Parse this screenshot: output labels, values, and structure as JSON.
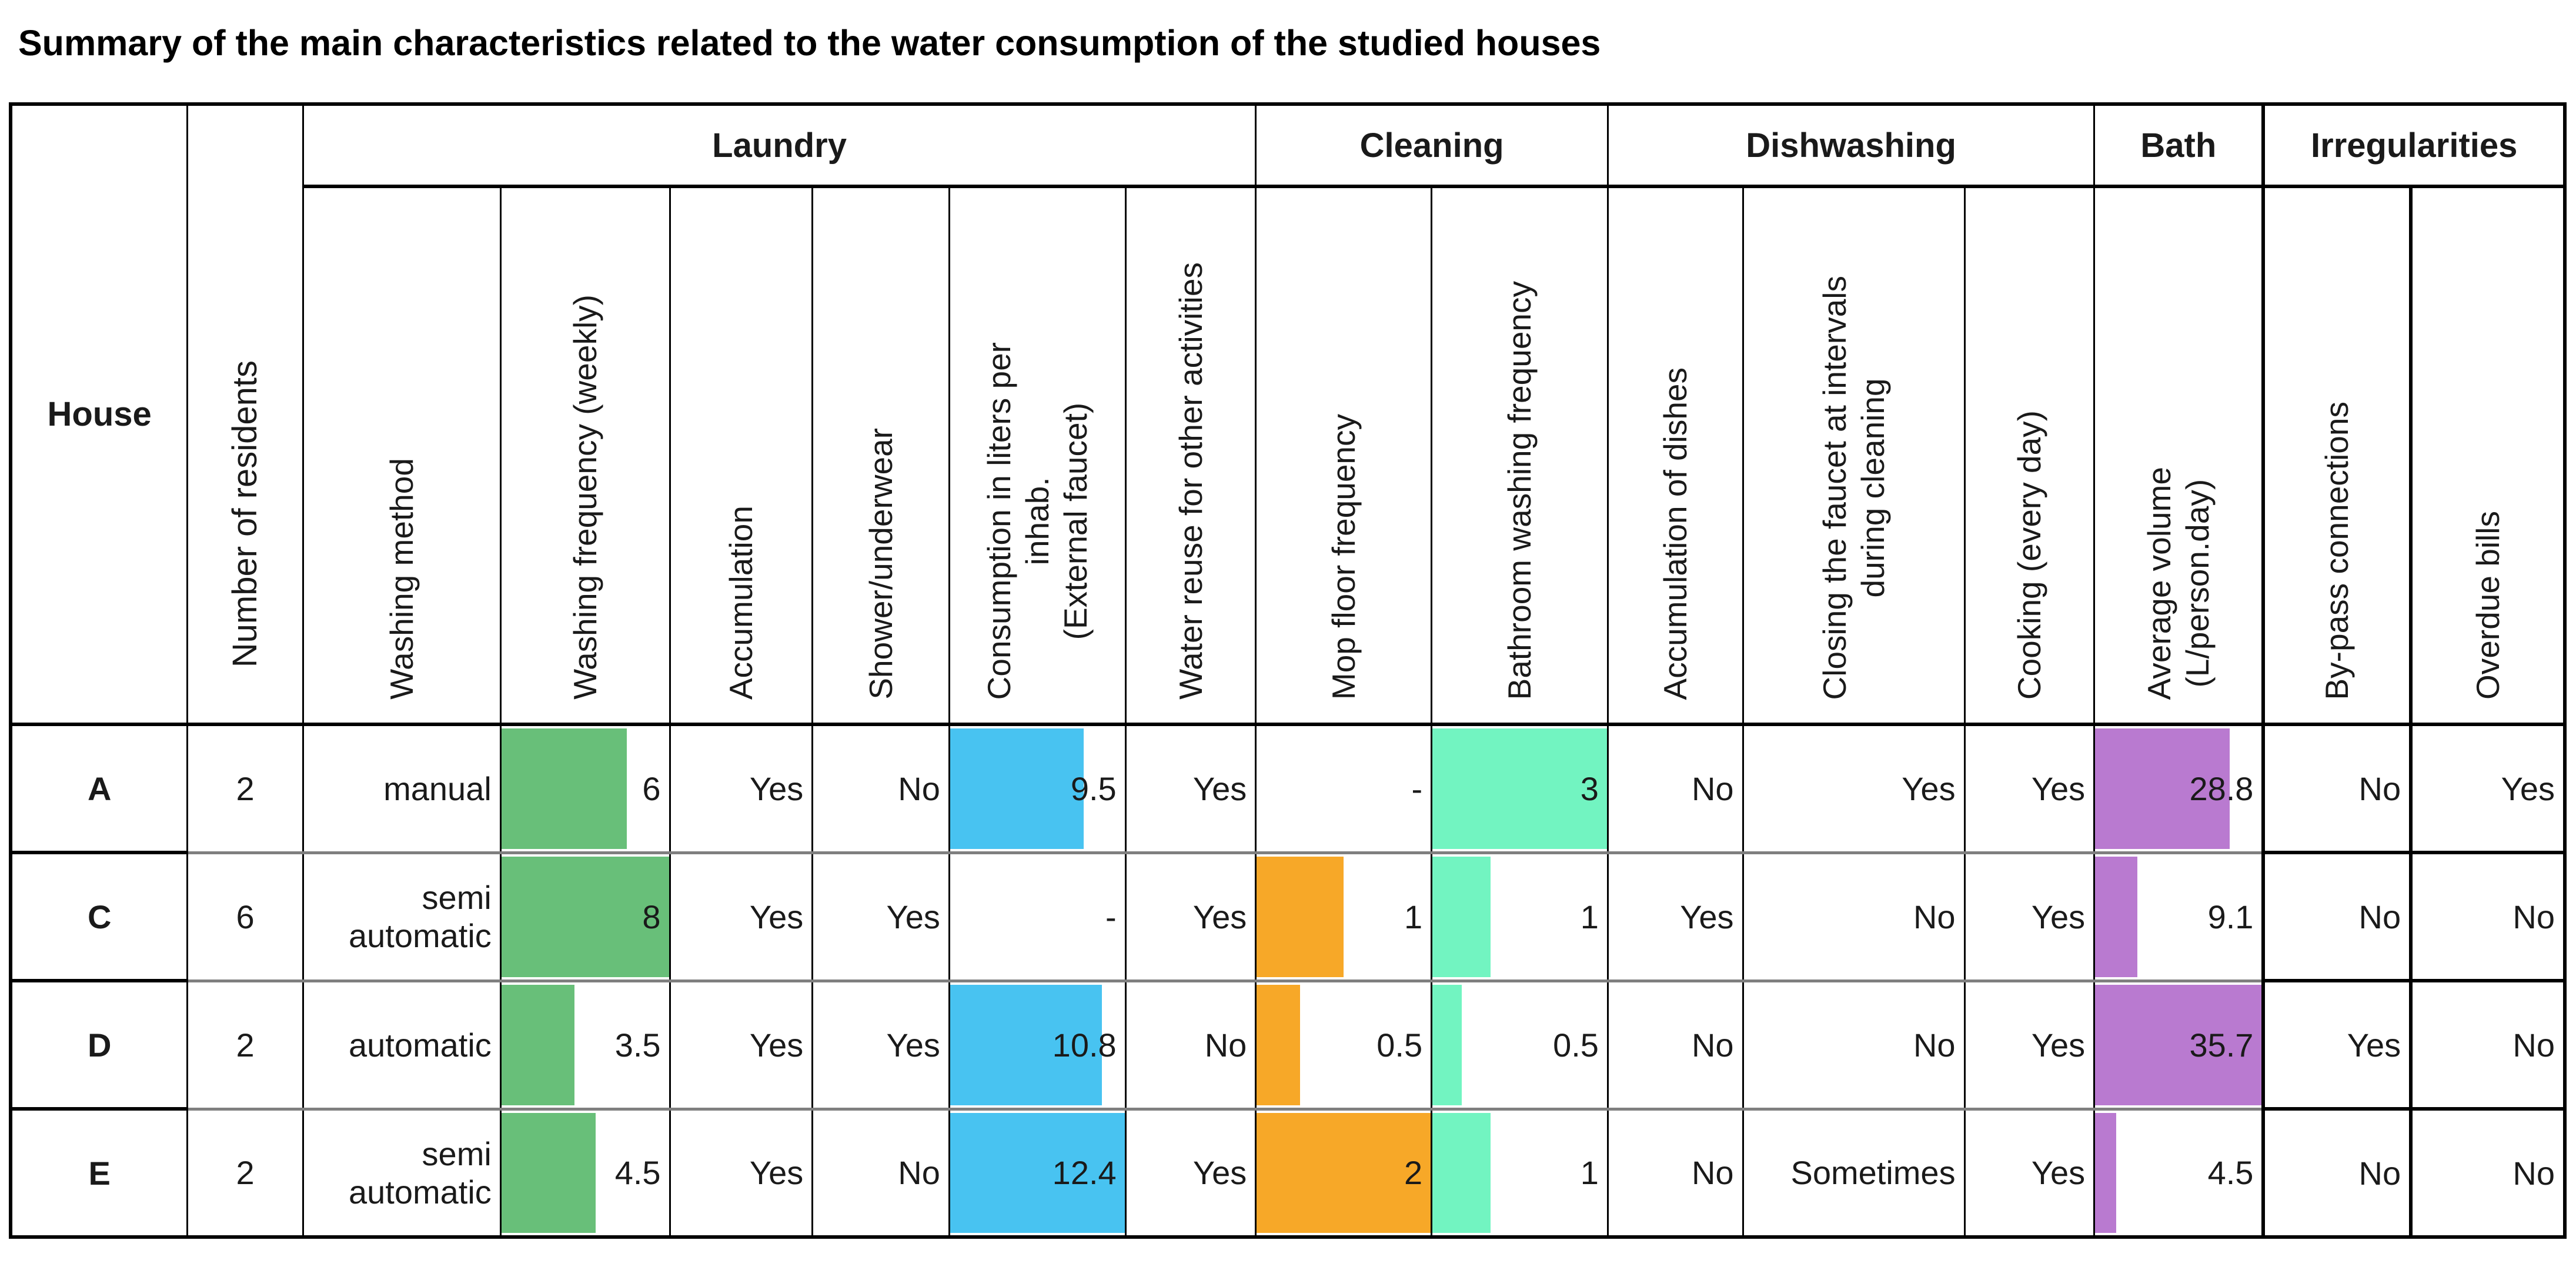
{
  "title": "Summary of the main characteristics related to the water consumption of the studied houses",
  "table": {
    "corner_headers": {
      "house": "House",
      "residents": "Number of residents"
    },
    "groups": {
      "laundry": "Laundry",
      "cleaning": "Cleaning",
      "dishwashing": "Dishwashing",
      "bath": "Bath",
      "irregularities": "Irregularities"
    },
    "columns": {
      "washing_method": "Washing method",
      "washing_freq": "Washing frequency (weekly)",
      "accumulation": "Accumulation",
      "shower_underwear": "Shower/underwear",
      "consumption": "Consumption in liters per\ninhab.\n(External faucet)",
      "water_reuse": "Water reuse for other activities",
      "mop_floor": "Mop floor frequency",
      "bathroom_washing": "Bathroom washing frequency",
      "accumulation_dishes": "Accumulation of dishes",
      "closing_faucet": "Closing the faucet at intervals\nduring cleaning",
      "cooking": "Cooking (every day)",
      "average_volume": "Average volume\n(L/person.day)",
      "bypass": "By-pass connections",
      "overdue": "Overdue bills"
    },
    "bars": {
      "washing_freq": {
        "max": 8,
        "color": "#68bf79"
      },
      "consumption": {
        "max": 12.4,
        "color": "#48c3f1"
      },
      "mop_floor": {
        "max": 2,
        "color": "#f7a828"
      },
      "bathroom_washing": {
        "max": 3,
        "color": "#72f4c1"
      },
      "average_volume": {
        "max": 35.7,
        "color": "#b97ad0"
      }
    },
    "rows": [
      {
        "house": "A",
        "residents": "2",
        "washing_method": "manual",
        "washing_freq": {
          "value": 6,
          "label": "6"
        },
        "accumulation": "Yes",
        "shower_underwear": "No",
        "consumption": {
          "value": 9.5,
          "label": "9.5"
        },
        "water_reuse": "Yes",
        "mop_floor": {
          "value": null,
          "label": "-"
        },
        "bathroom_washing": {
          "value": 3,
          "label": "3"
        },
        "accumulation_dishes": "No",
        "closing_faucet": "Yes",
        "cooking": "Yes",
        "average_volume": {
          "value": 28.8,
          "label": "28.8"
        },
        "bypass": "No",
        "overdue": "Yes"
      },
      {
        "house": "C",
        "residents": "6",
        "washing_method": "semi automatic",
        "washing_freq": {
          "value": 8,
          "label": "8"
        },
        "accumulation": "Yes",
        "shower_underwear": "Yes",
        "consumption": {
          "value": null,
          "label": "-"
        },
        "water_reuse": "Yes",
        "mop_floor": {
          "value": 1,
          "label": "1"
        },
        "bathroom_washing": {
          "value": 1,
          "label": "1"
        },
        "accumulation_dishes": "Yes",
        "closing_faucet": "No",
        "cooking": "Yes",
        "average_volume": {
          "value": 9.1,
          "label": "9.1"
        },
        "bypass": "No",
        "overdue": "No"
      },
      {
        "house": "D",
        "residents": "2",
        "washing_method": "automatic",
        "washing_freq": {
          "value": 3.5,
          "label": "3.5"
        },
        "accumulation": "Yes",
        "shower_underwear": "Yes",
        "consumption": {
          "value": 10.8,
          "label": "10.8"
        },
        "water_reuse": "No",
        "mop_floor": {
          "value": 0.5,
          "label": "0.5"
        },
        "bathroom_washing": {
          "value": 0.5,
          "label": "0.5"
        },
        "accumulation_dishes": "No",
        "closing_faucet": "No",
        "cooking": "Yes",
        "average_volume": {
          "value": 35.7,
          "label": "35.7"
        },
        "bypass": "Yes",
        "overdue": "No"
      },
      {
        "house": "E",
        "residents": "2",
        "washing_method": "semi automatic",
        "washing_freq": {
          "value": 4.5,
          "label": "4.5"
        },
        "accumulation": "Yes",
        "shower_underwear": "No",
        "consumption": {
          "value": 12.4,
          "label": "12.4"
        },
        "water_reuse": "Yes",
        "mop_floor": {
          "value": 2,
          "label": "2"
        },
        "bathroom_washing": {
          "value": 1,
          "label": "1"
        },
        "accumulation_dishes": "No",
        "closing_faucet": "Sometimes",
        "cooking": "Yes",
        "average_volume": {
          "value": 4.5,
          "label": "4.5"
        },
        "bypass": "No",
        "overdue": "No"
      }
    ]
  }
}
